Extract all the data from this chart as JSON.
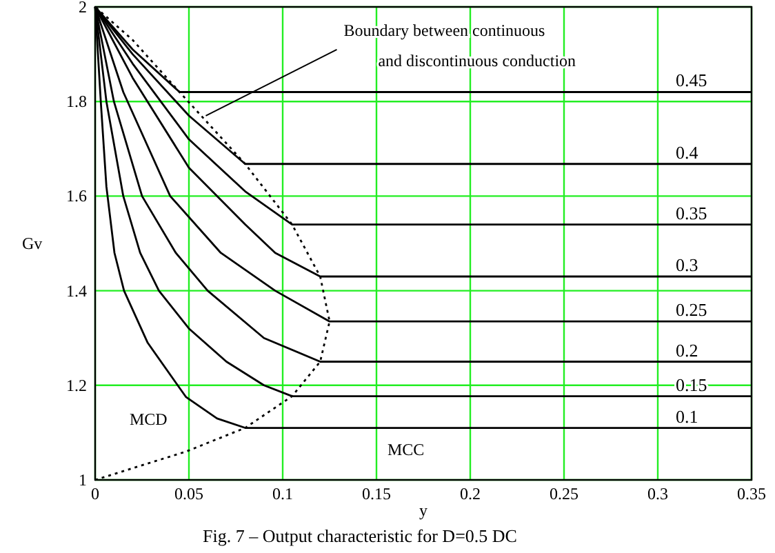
{
  "chart_data": {
    "type": "line",
    "xlabel": "y",
    "ylabel": "Gv",
    "xlim": [
      0,
      0.35
    ],
    "ylim": [
      1,
      2
    ],
    "xticks": [
      0,
      0.05,
      0.1,
      0.15,
      0.2,
      0.25,
      0.3,
      0.35
    ],
    "yticks": [
      1,
      1.2,
      1.4,
      1.6,
      1.8,
      2
    ],
    "grid": true,
    "series": [
      {
        "name": "0.45",
        "color": "#000000",
        "x": [
          0,
          0.02,
          0.045,
          0.35
        ],
        "values": [
          2,
          1.91,
          1.82,
          1.82
        ]
      },
      {
        "name": "0.4",
        "color": "#000000",
        "x": [
          0,
          0.02,
          0.05,
          0.08,
          0.35
        ],
        "values": [
          2,
          1.9,
          1.77,
          1.668,
          1.668
        ]
      },
      {
        "name": "0.35",
        "color": "#000000",
        "x": [
          0,
          0.02,
          0.05,
          0.08,
          0.105,
          0.35
        ],
        "values": [
          2,
          1.88,
          1.72,
          1.61,
          1.54,
          1.54
        ]
      },
      {
        "name": "0.3",
        "color": "#000000",
        "x": [
          0,
          0.02,
          0.05,
          0.08,
          0.096,
          0.12,
          0.35
        ],
        "values": [
          2,
          1.85,
          1.66,
          1.54,
          1.48,
          1.43,
          1.43
        ]
      },
      {
        "name": "0.25",
        "color": "#000000",
        "x": [
          0,
          0.015,
          0.04,
          0.067,
          0.096,
          0.125,
          0.35
        ],
        "values": [
          2,
          1.82,
          1.6,
          1.48,
          1.4,
          1.335,
          1.335
        ]
      },
      {
        "name": "0.2",
        "color": "#000000",
        "x": [
          0,
          0.01,
          0.025,
          0.043,
          0.06,
          0.09,
          0.12,
          0.35
        ],
        "values": [
          2,
          1.8,
          1.6,
          1.48,
          1.4,
          1.3,
          1.25,
          1.25
        ]
      },
      {
        "name": "0.15",
        "color": "#000000",
        "x": [
          0,
          0.006,
          0.015,
          0.024,
          0.034,
          0.05,
          0.07,
          0.09,
          0.105,
          0.35
        ],
        "values": [
          2,
          1.8,
          1.6,
          1.48,
          1.4,
          1.32,
          1.25,
          1.2,
          1.177,
          1.177
        ]
      },
      {
        "name": "0.1",
        "color": "#000000",
        "x": [
          0,
          0.003,
          0.006,
          0.0103,
          0.0154,
          0.028,
          0.044,
          0.0485,
          0.065,
          0.08,
          0.35
        ],
        "values": [
          2,
          1.8,
          1.62,
          1.48,
          1.4,
          1.29,
          1.2,
          1.175,
          1.13,
          1.11,
          1.11
        ]
      },
      {
        "color": "#000000",
        "line_style": "dotted",
        "x": [
          0,
          0.0485,
          0.08,
          0.105,
          0.12,
          0.125,
          0.12,
          0.105,
          0.08,
          0.045,
          0.02,
          0
        ],
        "values": [
          1,
          1.06,
          1.11,
          1.177,
          1.25,
          1.335,
          1.43,
          1.54,
          1.668,
          1.82,
          1.93,
          2
        ]
      }
    ],
    "annotations": [
      {
        "text": "Boundary between continuous\nand discontinuous conduction",
        "x": 0.059,
        "y": 1.77
      },
      "MCD",
      "MCC",
      "Fig. 7 – Output characteristic for D=0.5 DC"
    ]
  }
}
